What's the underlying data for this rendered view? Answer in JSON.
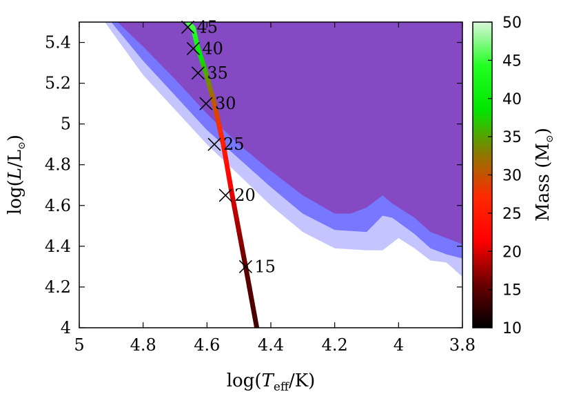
{
  "chart_data": {
    "type": "line",
    "xlabel": "log(T_eff/K)",
    "ylabel": "log(L/L_sun)",
    "xlim": [
      5,
      3.8
    ],
    "ylim": [
      4,
      5.5
    ],
    "x_axis_reversed": true,
    "xticks": [
      "5",
      "4.8",
      "4.6",
      "4.4",
      "4.2",
      "4",
      "3.8"
    ],
    "yticks": [
      "4",
      "4.2",
      "4.4",
      "4.6",
      "4.8",
      "5",
      "5.2",
      "5.4"
    ],
    "colorbar": {
      "label": "Mass (M_sun)",
      "range": [
        10,
        50
      ],
      "ticks": [
        "10",
        "15",
        "20",
        "25",
        "30",
        "35",
        "40",
        "45",
        "50"
      ],
      "colors": [
        "#000000",
        "#6b0000",
        "#ff0000",
        "#ff2a00",
        "#8b7a00",
        "#00e600",
        "#22ff22",
        "#d8f5d8"
      ]
    },
    "regions": [
      {
        "name": "outer",
        "color": "#c4c4ff",
        "x": [
          4.92,
          4.8,
          4.6,
          4.4,
          4.3,
          4.2,
          4.1,
          4.05,
          4.0,
          3.95,
          3.9,
          3.85,
          3.8
        ],
        "y": [
          5.5,
          5.24,
          4.9,
          4.6,
          4.47,
          4.39,
          4.38,
          4.38,
          4.44,
          4.39,
          4.33,
          4.32,
          4.25
        ]
      },
      {
        "name": "middle",
        "color": "#7777ff",
        "x": [
          4.9,
          4.8,
          4.6,
          4.4,
          4.3,
          4.2,
          4.1,
          4.05,
          4.02,
          3.95,
          3.9,
          3.85,
          3.8
        ],
        "y": [
          5.5,
          5.31,
          4.97,
          4.69,
          4.56,
          4.48,
          4.47,
          4.55,
          4.54,
          4.46,
          4.39,
          4.36,
          4.34
        ]
      },
      {
        "name": "inner",
        "color": "#8549c4",
        "x": [
          4.88,
          4.8,
          4.7,
          4.6,
          4.5,
          4.4,
          4.3,
          4.2,
          4.15,
          4.1,
          4.05,
          4.02,
          3.95,
          3.9,
          3.85,
          3.8
        ],
        "y": [
          5.5,
          5.38,
          5.22,
          5.05,
          4.9,
          4.77,
          4.65,
          4.56,
          4.56,
          4.59,
          4.65,
          4.61,
          4.54,
          4.47,
          4.44,
          4.41
        ]
      }
    ],
    "track": {
      "x": [
        4.444,
        4.479,
        4.521,
        4.549,
        4.577,
        4.603,
        4.628,
        4.643,
        4.66
      ],
      "y": [
        4.0,
        4.3,
        4.65,
        4.9,
        5.1,
        5.25,
        5.37,
        5.47,
        5.5
      ],
      "mass": [
        13.6,
        15,
        20,
        25,
        30,
        35,
        40,
        45,
        45.5
      ]
    },
    "markers": [
      {
        "label": "15",
        "mass": 15,
        "x": 4.479,
        "y": 4.3
      },
      {
        "label": "20",
        "mass": 20,
        "x": 4.542,
        "y": 4.65
      },
      {
        "label": "25",
        "mass": 25,
        "x": 4.577,
        "y": 4.9
      },
      {
        "label": "30",
        "mass": 30,
        "x": 4.603,
        "y": 5.1
      },
      {
        "label": "35",
        "mass": 35,
        "x": 4.628,
        "y": 5.25
      },
      {
        "label": "40",
        "mass": 40,
        "x": 4.643,
        "y": 5.37
      },
      {
        "label": "45",
        "mass": 45,
        "x": 4.66,
        "y": 5.475
      }
    ]
  }
}
